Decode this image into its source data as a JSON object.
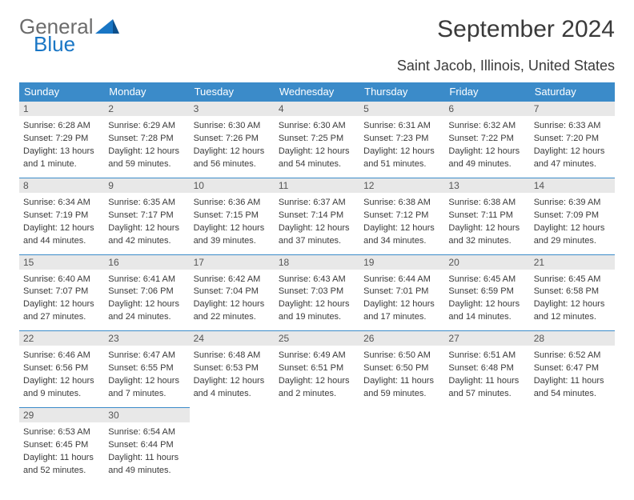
{
  "logo": {
    "word1": "General",
    "word2": "Blue"
  },
  "header": {
    "title": "September 2024",
    "location": "Saint Jacob, Illinois, United States"
  },
  "colors": {
    "header_bg": "#3b8bc9",
    "header_text": "#ffffff",
    "daynum_bg": "#e8e8e8",
    "daynum_border": "#3b8bc9",
    "body_text": "#3a3a3a",
    "logo_gray": "#6c6c6c",
    "logo_blue": "#1976c5",
    "background": "#ffffff"
  },
  "typography": {
    "title_fontsize": 30,
    "location_fontsize": 18,
    "dayheader_fontsize": 13,
    "daynum_fontsize": 12,
    "dayinfo_fontsize": 11,
    "logo_fontsize": 26
  },
  "days_of_week": [
    "Sunday",
    "Monday",
    "Tuesday",
    "Wednesday",
    "Thursday",
    "Friday",
    "Saturday"
  ],
  "weeks": [
    [
      {
        "n": "1",
        "sr": "Sunrise: 6:28 AM",
        "ss": "Sunset: 7:29 PM",
        "dl": "Daylight: 13 hours and 1 minute."
      },
      {
        "n": "2",
        "sr": "Sunrise: 6:29 AM",
        "ss": "Sunset: 7:28 PM",
        "dl": "Daylight: 12 hours and 59 minutes."
      },
      {
        "n": "3",
        "sr": "Sunrise: 6:30 AM",
        "ss": "Sunset: 7:26 PM",
        "dl": "Daylight: 12 hours and 56 minutes."
      },
      {
        "n": "4",
        "sr": "Sunrise: 6:30 AM",
        "ss": "Sunset: 7:25 PM",
        "dl": "Daylight: 12 hours and 54 minutes."
      },
      {
        "n": "5",
        "sr": "Sunrise: 6:31 AM",
        "ss": "Sunset: 7:23 PM",
        "dl": "Daylight: 12 hours and 51 minutes."
      },
      {
        "n": "6",
        "sr": "Sunrise: 6:32 AM",
        "ss": "Sunset: 7:22 PM",
        "dl": "Daylight: 12 hours and 49 minutes."
      },
      {
        "n": "7",
        "sr": "Sunrise: 6:33 AM",
        "ss": "Sunset: 7:20 PM",
        "dl": "Daylight: 12 hours and 47 minutes."
      }
    ],
    [
      {
        "n": "8",
        "sr": "Sunrise: 6:34 AM",
        "ss": "Sunset: 7:19 PM",
        "dl": "Daylight: 12 hours and 44 minutes."
      },
      {
        "n": "9",
        "sr": "Sunrise: 6:35 AM",
        "ss": "Sunset: 7:17 PM",
        "dl": "Daylight: 12 hours and 42 minutes."
      },
      {
        "n": "10",
        "sr": "Sunrise: 6:36 AM",
        "ss": "Sunset: 7:15 PM",
        "dl": "Daylight: 12 hours and 39 minutes."
      },
      {
        "n": "11",
        "sr": "Sunrise: 6:37 AM",
        "ss": "Sunset: 7:14 PM",
        "dl": "Daylight: 12 hours and 37 minutes."
      },
      {
        "n": "12",
        "sr": "Sunrise: 6:38 AM",
        "ss": "Sunset: 7:12 PM",
        "dl": "Daylight: 12 hours and 34 minutes."
      },
      {
        "n": "13",
        "sr": "Sunrise: 6:38 AM",
        "ss": "Sunset: 7:11 PM",
        "dl": "Daylight: 12 hours and 32 minutes."
      },
      {
        "n": "14",
        "sr": "Sunrise: 6:39 AM",
        "ss": "Sunset: 7:09 PM",
        "dl": "Daylight: 12 hours and 29 minutes."
      }
    ],
    [
      {
        "n": "15",
        "sr": "Sunrise: 6:40 AM",
        "ss": "Sunset: 7:07 PM",
        "dl": "Daylight: 12 hours and 27 minutes."
      },
      {
        "n": "16",
        "sr": "Sunrise: 6:41 AM",
        "ss": "Sunset: 7:06 PM",
        "dl": "Daylight: 12 hours and 24 minutes."
      },
      {
        "n": "17",
        "sr": "Sunrise: 6:42 AM",
        "ss": "Sunset: 7:04 PM",
        "dl": "Daylight: 12 hours and 22 minutes."
      },
      {
        "n": "18",
        "sr": "Sunrise: 6:43 AM",
        "ss": "Sunset: 7:03 PM",
        "dl": "Daylight: 12 hours and 19 minutes."
      },
      {
        "n": "19",
        "sr": "Sunrise: 6:44 AM",
        "ss": "Sunset: 7:01 PM",
        "dl": "Daylight: 12 hours and 17 minutes."
      },
      {
        "n": "20",
        "sr": "Sunrise: 6:45 AM",
        "ss": "Sunset: 6:59 PM",
        "dl": "Daylight: 12 hours and 14 minutes."
      },
      {
        "n": "21",
        "sr": "Sunrise: 6:45 AM",
        "ss": "Sunset: 6:58 PM",
        "dl": "Daylight: 12 hours and 12 minutes."
      }
    ],
    [
      {
        "n": "22",
        "sr": "Sunrise: 6:46 AM",
        "ss": "Sunset: 6:56 PM",
        "dl": "Daylight: 12 hours and 9 minutes."
      },
      {
        "n": "23",
        "sr": "Sunrise: 6:47 AM",
        "ss": "Sunset: 6:55 PM",
        "dl": "Daylight: 12 hours and 7 minutes."
      },
      {
        "n": "24",
        "sr": "Sunrise: 6:48 AM",
        "ss": "Sunset: 6:53 PM",
        "dl": "Daylight: 12 hours and 4 minutes."
      },
      {
        "n": "25",
        "sr": "Sunrise: 6:49 AM",
        "ss": "Sunset: 6:51 PM",
        "dl": "Daylight: 12 hours and 2 minutes."
      },
      {
        "n": "26",
        "sr": "Sunrise: 6:50 AM",
        "ss": "Sunset: 6:50 PM",
        "dl": "Daylight: 11 hours and 59 minutes."
      },
      {
        "n": "27",
        "sr": "Sunrise: 6:51 AM",
        "ss": "Sunset: 6:48 PM",
        "dl": "Daylight: 11 hours and 57 minutes."
      },
      {
        "n": "28",
        "sr": "Sunrise: 6:52 AM",
        "ss": "Sunset: 6:47 PM",
        "dl": "Daylight: 11 hours and 54 minutes."
      }
    ],
    [
      {
        "n": "29",
        "sr": "Sunrise: 6:53 AM",
        "ss": "Sunset: 6:45 PM",
        "dl": "Daylight: 11 hours and 52 minutes."
      },
      {
        "n": "30",
        "sr": "Sunrise: 6:54 AM",
        "ss": "Sunset: 6:44 PM",
        "dl": "Daylight: 11 hours and 49 minutes."
      },
      null,
      null,
      null,
      null,
      null
    ]
  ]
}
